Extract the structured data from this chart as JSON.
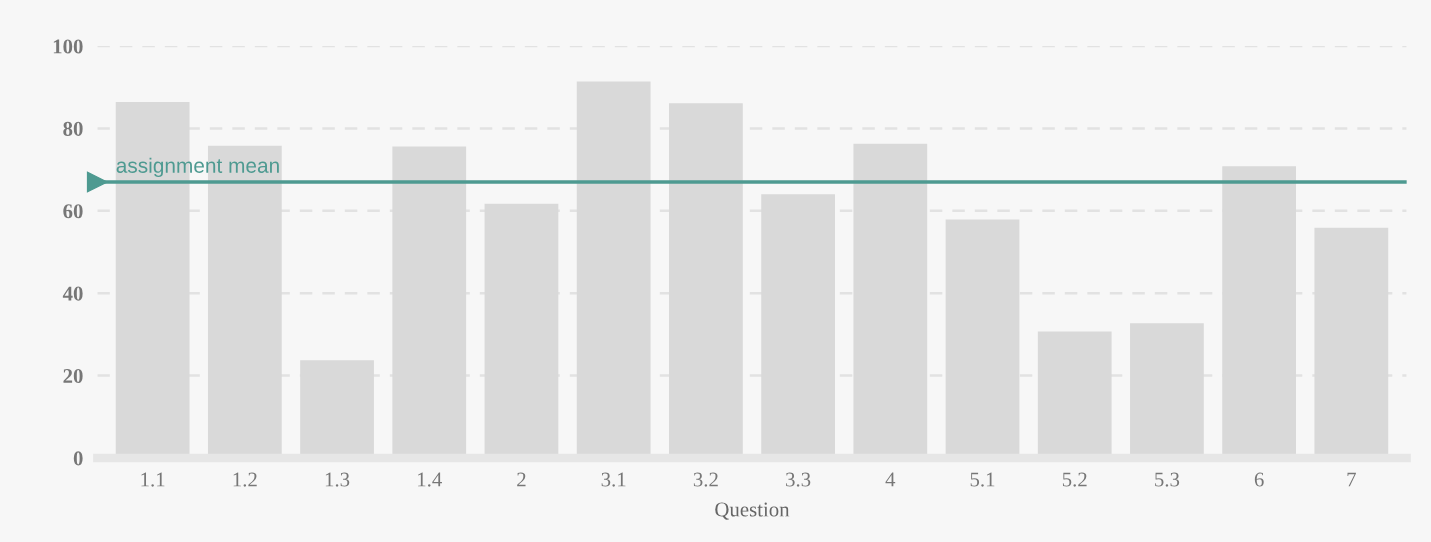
{
  "chart_data": {
    "type": "bar",
    "xlabel": "Question",
    "categories": [
      "1.1",
      "1.2",
      "1.3",
      "1.4",
      "2",
      "3.1",
      "3.2",
      "3.3",
      "4",
      "5.1",
      "5.2",
      "5.3",
      "6",
      "7"
    ],
    "values": [
      86.4,
      75.8,
      23.7,
      75.6,
      61.7,
      91.4,
      86.1,
      64,
      76.3,
      57.9,
      30.7,
      32.7,
      70.8,
      55.9
    ],
    "color": "#d9d9d9",
    "ylim": [
      0,
      100
    ],
    "yticks": [
      0,
      20,
      40,
      60,
      80,
      100
    ],
    "grid": "y",
    "ref_lines": [
      {
        "axis": "y",
        "value": 67,
        "label": "assignment mean",
        "color": "#4e9a91",
        "line_style": "solid"
      }
    ]
  }
}
